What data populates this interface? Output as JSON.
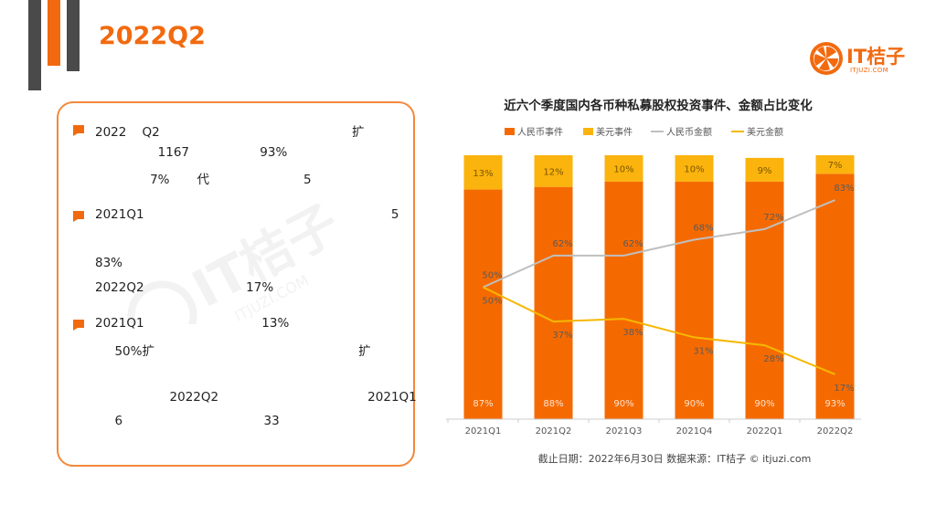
{
  "page": {
    "title": "2022Q2",
    "brand": {
      "name": "IT桔子",
      "url": "ITJUZI.COM"
    }
  },
  "notes": [
    {
      "lines": [
        "2022    Q2                                                 扩",
        "                1167                  93%",
        "              7%       代                        5"
      ]
    },
    {
      "lines": [
        "2021Q1                                                               5",
        "",
        "83%",
        "2022Q2                          17%"
      ]
    },
    {
      "lines": [
        "2021Q1                              13%",
        "     50%扩                                                    扩",
        "",
        "                   2022Q2                                      2021Q1",
        "     6                                    33"
      ]
    }
  ],
  "chart_data": {
    "type": "bar",
    "title": "近六个季度国内各币种私募股权投资事件、金额占比变化",
    "categories": [
      "2021Q1",
      "2021Q2",
      "2021Q3",
      "2021Q4",
      "2022Q1",
      "2022Q2"
    ],
    "series": [
      {
        "name": "人民币事件",
        "kind": "bar",
        "color": "#f56a00",
        "values": [
          87,
          88,
          90,
          90,
          90,
          93
        ],
        "labels": [
          "87%",
          "88%",
          "90%",
          "90%",
          "90%",
          "93%"
        ]
      },
      {
        "name": "美元事件",
        "kind": "bar",
        "color": "#fbb30d",
        "values": [
          13,
          12,
          10,
          10,
          9,
          7
        ],
        "labels": [
          "13%",
          "12%",
          "10%",
          "10%",
          "9%",
          "7%"
        ]
      },
      {
        "name": "人民币金额",
        "kind": "line",
        "color": "#bfbfbf",
        "values": [
          50,
          62,
          62,
          68,
          72,
          83
        ],
        "labels": [
          "50%",
          "62%",
          "62%",
          "68%",
          "72%",
          "83%"
        ]
      },
      {
        "name": "美元金额",
        "kind": "line",
        "color": "#f5b800",
        "values": [
          50,
          37,
          38,
          31,
          28,
          17
        ],
        "labels": [
          "50%",
          "37%",
          "38%",
          "31%",
          "28%",
          "17%"
        ]
      }
    ],
    "ylim": [
      0,
      100
    ],
    "legend": "top",
    "footer": "截止日期：2022年6月30日     数据来源：IT桔子 © itjuzi.com"
  }
}
